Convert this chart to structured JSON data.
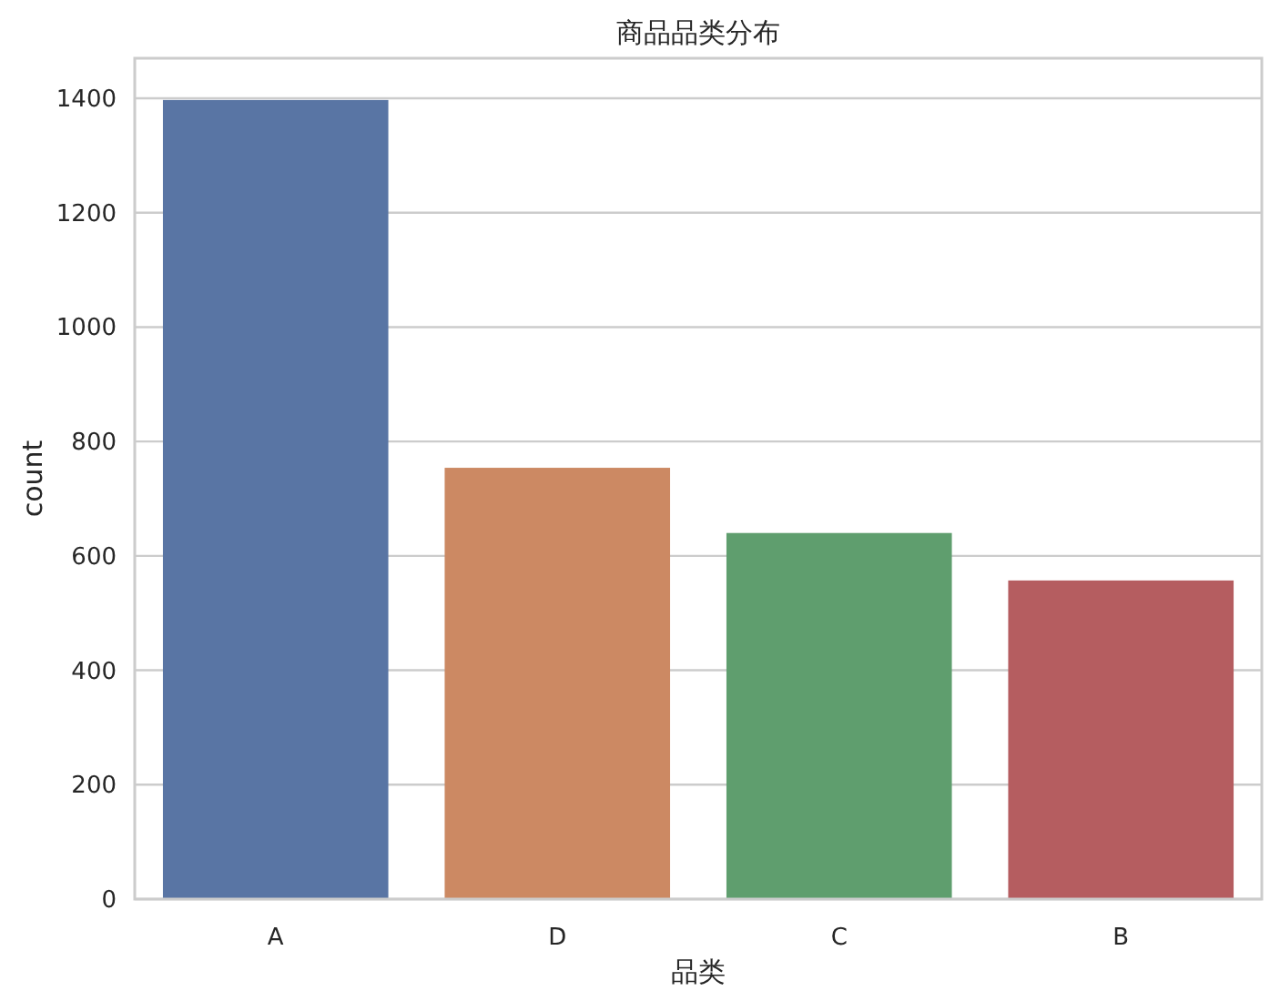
{
  "chart_data": {
    "type": "bar",
    "title": "商品品类分布",
    "xlabel": "品类",
    "ylabel": "count",
    "categories": [
      "A",
      "D",
      "C",
      "B"
    ],
    "values": [
      1397,
      754,
      640,
      557
    ],
    "colors": [
      "#5975a4",
      "#cc8963",
      "#5f9e6e",
      "#b55d60"
    ],
    "ylim": [
      0,
      1470
    ],
    "yticks": [
      0,
      200,
      400,
      600,
      800,
      1000,
      1200,
      1400
    ],
    "grid": "y"
  }
}
